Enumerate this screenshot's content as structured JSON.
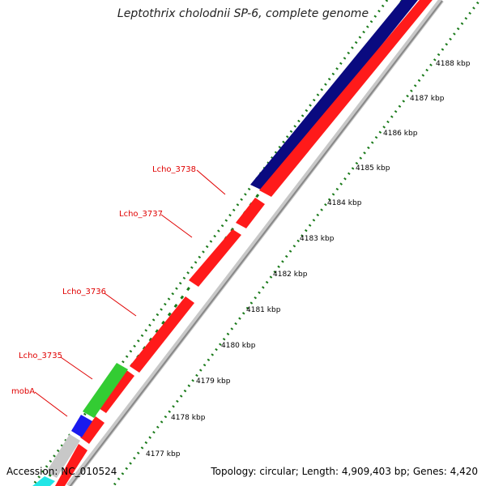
{
  "title": "Leptothrix cholodnii SP-6, complete genome",
  "accession": "Accession: NC_010524",
  "summary": "Topology: circular; Length: 4,909,403 bp; Genes: 4,420",
  "ticks": [
    "4188 kbp",
    "4187 kbp",
    "4186 kbp",
    "4185 kbp",
    "4184 kbp",
    "4183 kbp",
    "4182 kbp",
    "4181 kbp",
    "4180 kbp",
    "4179 kbp",
    "4178 kbp",
    "4177 kbp"
  ],
  "gene_labels": [
    "Lcho_3738",
    "Lcho_3737",
    "Lcho_3736",
    "Lcho_3735",
    "mobA"
  ],
  "colors": {
    "cds_forward": "#ff1a1a",
    "cds_reverse": "#0a0a80",
    "backbone": "#9a9a9a",
    "gc_skew": "#1a7a1a",
    "gene_green": "#33cc33",
    "gene_blue": "#1a1aee",
    "gene_gray": "#c8c8c8",
    "gene_cyan": "#22e6e6",
    "label": "#e00000"
  }
}
